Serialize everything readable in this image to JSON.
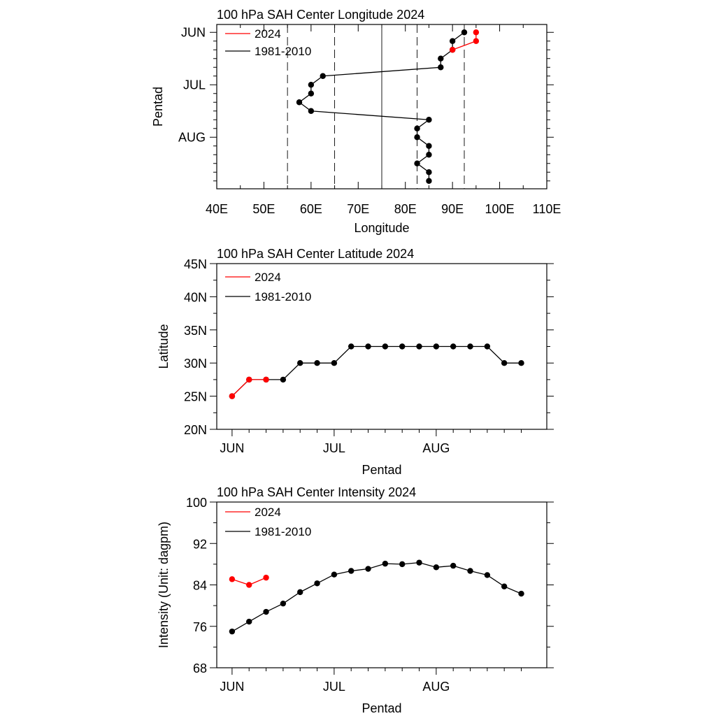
{
  "colors": {
    "y2024": "#ff0000",
    "climatology": "#000000"
  },
  "legend": {
    "y2024": "2024",
    "climatology": "1981-2010"
  },
  "chart_data": [
    {
      "type": "line",
      "title": "100 hPa SAH Center Longitude 2024",
      "xlabel": "Longitude",
      "ylabel": "Pentad",
      "orientation": "horizontal",
      "xlim": [
        40,
        110
      ],
      "x_ticks": [
        40,
        50,
        60,
        70,
        80,
        90,
        100,
        110
      ],
      "x_tick_labels": [
        "40E",
        "50E",
        "60E",
        "70E",
        "80E",
        "90E",
        "100E",
        "110E"
      ],
      "y_tick_labels": [
        "JUN",
        "JUL",
        "AUG"
      ],
      "y_ticks_pentad": [
        1,
        7,
        13
      ],
      "ylim_pentad": [
        0.1,
        18.9
      ],
      "reference_lines": {
        "dashed": [
          55,
          65,
          82.5,
          92.5
        ],
        "solid": [
          75
        ]
      },
      "legend_position": "top-left",
      "series": [
        {
          "name": "2024",
          "color": "#ff0000",
          "pentad": [
            1,
            2,
            3
          ],
          "values": [
            95,
            95,
            90
          ]
        },
        {
          "name": "1981-2010",
          "color": "#000000",
          "pentad": [
            1,
            2,
            3,
            4,
            5,
            6,
            7,
            8,
            9,
            10,
            11,
            12,
            13,
            14,
            15,
            16,
            17,
            18
          ],
          "values": [
            92.5,
            90,
            90,
            87.5,
            87.5,
            62.5,
            60,
            60,
            57.5,
            60,
            85,
            82.5,
            82.5,
            85,
            85,
            82.5,
            85,
            85
          ]
        }
      ]
    },
    {
      "type": "line",
      "title": "100 hPa SAH Center Latitude 2024",
      "xlabel": "Pentad",
      "ylabel": "Latitude",
      "ylim": [
        20,
        45
      ],
      "y_ticks": [
        20,
        25,
        30,
        35,
        40,
        45
      ],
      "y_tick_labels": [
        "20N",
        "25N",
        "30N",
        "35N",
        "40N",
        "45N"
      ],
      "x_tick_labels": [
        "JUN",
        "JUL",
        "AUG"
      ],
      "x_ticks_pentad": [
        1,
        7,
        13
      ],
      "xlim_pentad": [
        0.1,
        19.5
      ],
      "legend_position": "top-left",
      "series": [
        {
          "name": "2024",
          "color": "#ff0000",
          "pentad": [
            1,
            2,
            3
          ],
          "values": [
            25,
            27.5,
            27.5
          ]
        },
        {
          "name": "1981-2010",
          "color": "#000000",
          "pentad": [
            1,
            2,
            3,
            4,
            5,
            6,
            7,
            8,
            9,
            10,
            11,
            12,
            13,
            14,
            15,
            16,
            17,
            18
          ],
          "values": [
            25,
            27.5,
            27.5,
            27.5,
            30,
            30,
            30,
            32.5,
            32.5,
            32.5,
            32.5,
            32.5,
            32.5,
            32.5,
            32.5,
            32.5,
            30,
            30
          ]
        }
      ]
    },
    {
      "type": "line",
      "title": "100 hPa SAH Center Intensity 2024",
      "xlabel": "Pentad",
      "ylabel": "Intensity (Unit: dagpm)",
      "ylim": [
        68,
        100
      ],
      "y_ticks": [
        68,
        76,
        84,
        92,
        100
      ],
      "y_tick_labels": [
        "68",
        "76",
        "84",
        "92",
        "100"
      ],
      "x_tick_labels": [
        "JUN",
        "JUL",
        "AUG"
      ],
      "x_ticks_pentad": [
        1,
        7,
        13
      ],
      "xlim_pentad": [
        0.1,
        19.5
      ],
      "legend_position": "top-left",
      "series": [
        {
          "name": "2024",
          "color": "#ff0000",
          "pentad": [
            1,
            2,
            3
          ],
          "values": [
            85.1,
            84.0,
            85.4
          ]
        },
        {
          "name": "1981-2010",
          "color": "#000000",
          "pentad": [
            1,
            2,
            3,
            4,
            5,
            6,
            7,
            8,
            9,
            10,
            11,
            12,
            13,
            14,
            15,
            16,
            17,
            18
          ],
          "values": [
            75.0,
            76.9,
            78.8,
            80.4,
            82.6,
            84.3,
            86.0,
            86.7,
            87.1,
            88.1,
            88.0,
            88.3,
            87.4,
            87.7,
            86.7,
            85.9,
            83.7,
            82.3
          ]
        }
      ]
    }
  ]
}
